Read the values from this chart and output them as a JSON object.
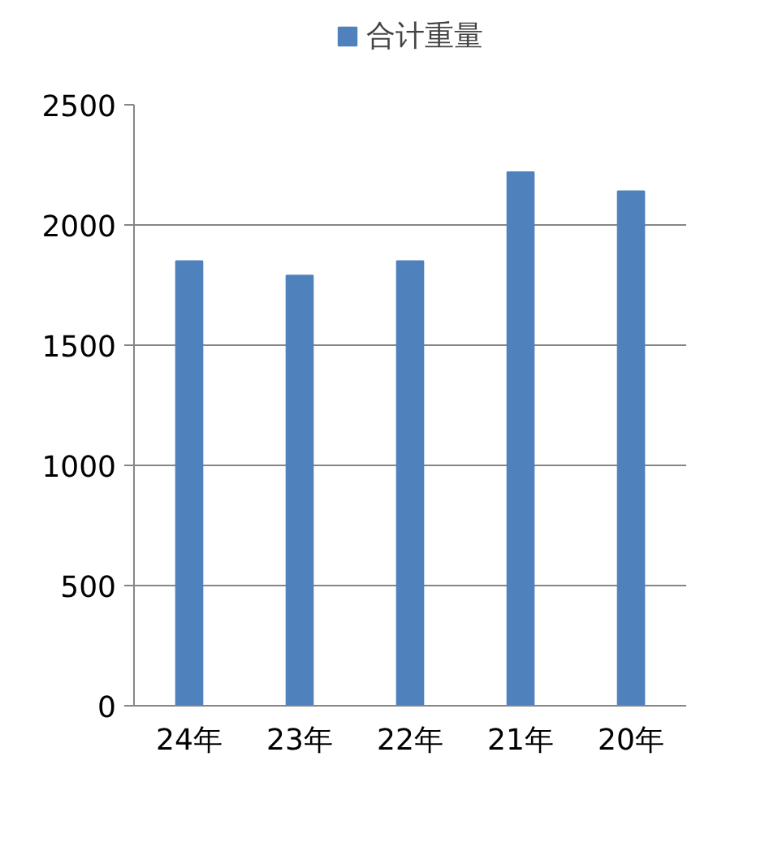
{
  "chart_data": {
    "type": "bar",
    "categories": [
      "24年",
      "23年",
      "22年",
      "21年",
      "20年"
    ],
    "series": [
      {
        "name": "合计重量",
        "color": "#4f81bd",
        "values": [
          1850,
          1790,
          1850,
          2220,
          2140
        ]
      }
    ],
    "ylim": [
      0,
      2500
    ],
    "yticks": [
      0,
      500,
      1000,
      1500,
      2000,
      2500
    ],
    "grid": "y",
    "legend": "top"
  }
}
